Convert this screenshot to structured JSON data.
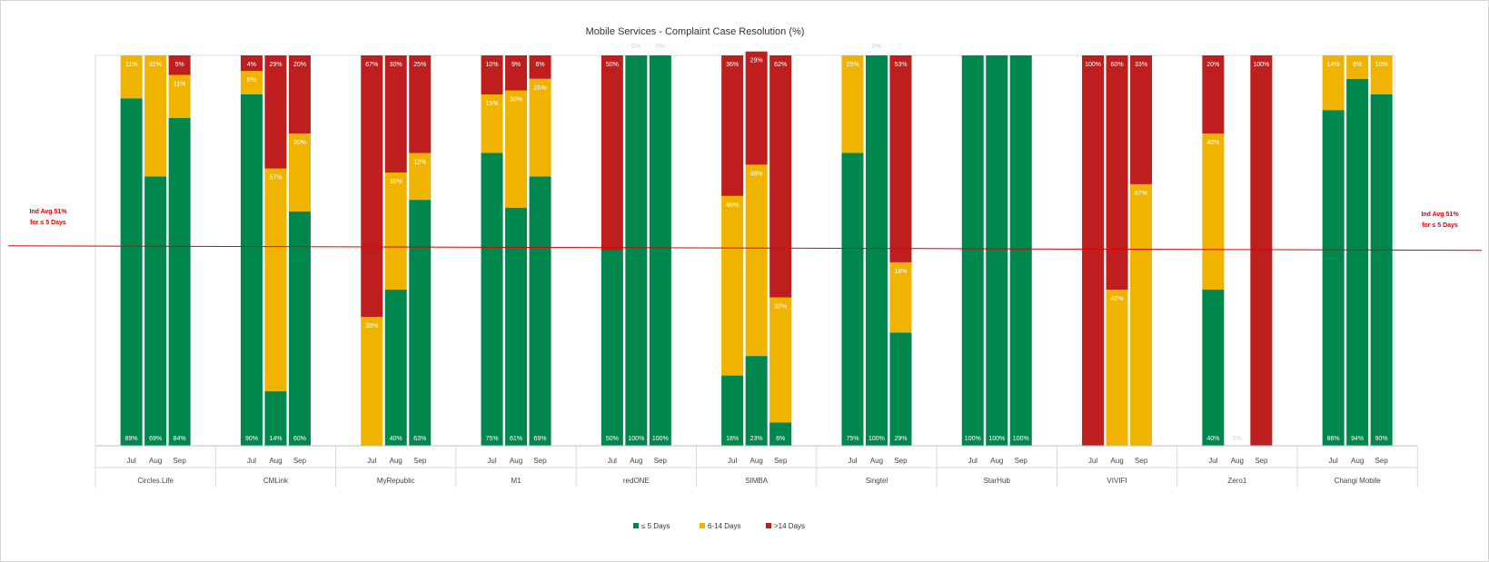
{
  "chart_data": {
    "type": "bar",
    "stacked": true,
    "title": "Mobile Services - Complaint Case Resolution (%)",
    "ylim": [
      0,
      100
    ],
    "grid": false,
    "legend_placement": "bottom",
    "series": [
      {
        "key": "le5",
        "name": "≤ 5 Days",
        "color": "#00874e"
      },
      {
        "key": "d614",
        "name": "6-14 Days",
        "color": "#f0b400"
      },
      {
        "key": "gt14",
        "name": ">14 Days",
        "color": "#be1e1e"
      }
    ],
    "groups": [
      {
        "name": "Circles.Life",
        "bars": [
          {
            "month": "Jul",
            "le5": 89,
            "d614": 11,
            "gt14": 0,
            "labels": {
              "le5": "89%",
              "d614": "11%"
            }
          },
          {
            "month": "Aug",
            "le5": 69,
            "d614": 31,
            "gt14": 0,
            "labels": {
              "le5": "69%",
              "d614": "31%"
            }
          },
          {
            "month": "Sep",
            "le5": 84,
            "d614": 11,
            "gt14": 5,
            "labels": {
              "le5": "84%",
              "d614": "11%",
              "gt14": "5%"
            }
          }
        ]
      },
      {
        "name": "CMLink",
        "bars": [
          {
            "month": "Jul",
            "le5": 90,
            "d614": 6,
            "gt14": 4,
            "labels": {
              "le5": "90%",
              "d614": "6%",
              "gt14": "4%"
            }
          },
          {
            "month": "Aug",
            "le5": 14,
            "d614": 57,
            "gt14": 29,
            "labels": {
              "le5": "14%",
              "d614": "57%",
              "gt14": "29%"
            }
          },
          {
            "month": "Sep",
            "le5": 60,
            "d614": 20,
            "gt14": 20,
            "labels": {
              "le5": "60%",
              "d614": "20%",
              "gt14": "20%"
            }
          }
        ]
      },
      {
        "name": "MyRepublic",
        "bars": [
          {
            "month": "Jul",
            "le5": 0,
            "d614": 33,
            "gt14": 67,
            "labels": {
              "d614": "33%",
              "gt14": "67%"
            }
          },
          {
            "month": "Aug",
            "le5": 40,
            "d614": 30,
            "gt14": 30,
            "labels": {
              "le5": "40%",
              "d614": "30%",
              "gt14": "30%"
            }
          },
          {
            "month": "Sep",
            "le5": 63,
            "d614": 12,
            "gt14": 25,
            "labels": {
              "le5": "63%",
              "d614": "12%",
              "gt14": "25%"
            }
          }
        ]
      },
      {
        "name": "M1",
        "bars": [
          {
            "month": "Jul",
            "le5": 75,
            "d614": 15,
            "gt14": 10,
            "labels": {
              "le5": "75%",
              "d614": "15%",
              "gt14": "10%"
            }
          },
          {
            "month": "Aug",
            "le5": 61,
            "d614": 30,
            "gt14": 9,
            "labels": {
              "le5": "61%",
              "d614": "30%",
              "gt14": "9%"
            }
          },
          {
            "month": "Sep",
            "le5": 69,
            "d614": 25,
            "gt14": 6,
            "labels": {
              "le5": "69%",
              "d614": "25%",
              "gt14": "6%"
            }
          }
        ]
      },
      {
        "name": "redONE",
        "bars": [
          {
            "month": "Jul",
            "le5": 50,
            "d614": 0,
            "gt14": 50,
            "labels": {
              "le5": "50%",
              "gt14": "50%"
            }
          },
          {
            "month": "Aug",
            "le5": 100,
            "d614": 0,
            "gt14": 0,
            "labels": {
              "le5": "100%",
              "top": "0%"
            }
          },
          {
            "month": "Sep",
            "le5": 100,
            "d614": 0,
            "gt14": 0,
            "labels": {
              "le5": "100%",
              "top": "0%"
            }
          }
        ]
      },
      {
        "name": "SIMBA",
        "bars": [
          {
            "month": "Jul",
            "le5": 18,
            "d614": 46,
            "gt14": 36,
            "labels": {
              "le5": "18%",
              "d614": "46%",
              "gt14": "36%"
            }
          },
          {
            "month": "Aug",
            "le5": 23,
            "d614": 49,
            "gt14": 29,
            "labels": {
              "le5": "23%",
              "d614": "49%",
              "gt14": "29%"
            }
          },
          {
            "month": "Sep",
            "le5": 6,
            "d614": 32,
            "gt14": 62,
            "labels": {
              "le5": "6%",
              "d614": "32%",
              "gt14": "62%"
            }
          }
        ]
      },
      {
        "name": "Singtel",
        "bars": [
          {
            "month": "Jul",
            "le5": 75,
            "d614": 25,
            "gt14": 0,
            "labels": {
              "le5": "75%",
              "d614": "25%"
            }
          },
          {
            "month": "Aug",
            "le5": 100,
            "d614": 0,
            "gt14": 0,
            "labels": {
              "le5": "100%",
              "top": "0%"
            }
          },
          {
            "month": "Sep",
            "le5": 29,
            "d614": 18,
            "gt14": 53,
            "labels": {
              "le5": "29%",
              "d614": "18%",
              "gt14": "53%"
            }
          }
        ]
      },
      {
        "name": "StarHub",
        "bars": [
          {
            "month": "Jul",
            "le5": 100,
            "d614": 0,
            "gt14": 0,
            "labels": {
              "le5": "100%"
            }
          },
          {
            "month": "Aug",
            "le5": 100,
            "d614": 0,
            "gt14": 0,
            "labels": {
              "le5": "100%"
            }
          },
          {
            "month": "Sep",
            "le5": 100,
            "d614": 0,
            "gt14": 0,
            "labels": {
              "le5": "100%"
            }
          }
        ]
      },
      {
        "name": "VIVIFI",
        "bars": [
          {
            "month": "Jul",
            "le5": 0,
            "d614": 0,
            "gt14": 100,
            "labels": {
              "gt14": "100%"
            }
          },
          {
            "month": "Aug",
            "le5": 0,
            "d614": 40,
            "gt14": 60,
            "labels": {
              "d614": "40%",
              "gt14": "60%"
            }
          },
          {
            "month": "Sep",
            "le5": 0,
            "d614": 67,
            "gt14": 33,
            "labels": {
              "d614": "67%",
              "gt14": "33%"
            }
          }
        ]
      },
      {
        "name": "Zero1",
        "bars": [
          {
            "month": "Jul",
            "le5": 40,
            "d614": 40,
            "gt14": 20,
            "labels": {
              "le5": "40%",
              "d614": "40%",
              "gt14": "20%"
            }
          },
          {
            "month": "Aug",
            "le5": 0,
            "d614": 0,
            "gt14": 0,
            "labels": {
              "empty": "0%"
            }
          },
          {
            "month": "Sep",
            "le5": 0,
            "d614": 0,
            "gt14": 100,
            "labels": {
              "gt14": "100%"
            }
          }
        ]
      },
      {
        "name": "Changi Mobile",
        "bars": [
          {
            "month": "Jul",
            "le5": 86,
            "d614": 14,
            "gt14": 0,
            "labels": {
              "le5": "86%",
              "d614": "14%"
            }
          },
          {
            "month": "Aug",
            "le5": 94,
            "d614": 6,
            "gt14": 0,
            "labels": {
              "le5": "94%",
              "d614": "6%"
            }
          },
          {
            "month": "Sep",
            "le5": 90,
            "d614": 10,
            "gt14": 0,
            "labels": {
              "le5": "90%",
              "d614": "10%"
            }
          }
        ]
      }
    ],
    "reference_line": {
      "value": 51,
      "label_lines": [
        "Ind Avg 51%",
        "for ≤ 5 Days"
      ],
      "color": "#e00000"
    }
  }
}
